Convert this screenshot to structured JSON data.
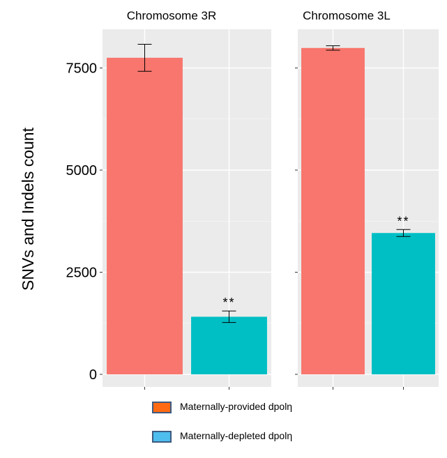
{
  "chart_data": {
    "type": "bar",
    "ylabel": "SNVs and Indels count",
    "ylim": [
      0,
      8400
    ],
    "yticks": [
      0,
      2500,
      5000,
      7500
    ],
    "grid": true,
    "legend_position": "bottom",
    "series": [
      {
        "name": "Maternally-provided dpolη",
        "color": "#F8766D"
      },
      {
        "name": "Maternally-depleted dpolη",
        "color": "#00BFC4"
      }
    ],
    "panels": [
      {
        "title": "Chromosome 3R",
        "categories": [
          "Maternally-provided dpolη",
          "Maternally-depleted dpolη"
        ],
        "values": [
          7750,
          1410
        ],
        "errors": [
          330,
          140
        ],
        "annotations": [
          "",
          "**"
        ]
      },
      {
        "title": "Chromosome 3L",
        "categories": [
          "Maternally-provided dpolη",
          "Maternally-depleted dpolη"
        ],
        "values": [
          7990,
          3460
        ],
        "errors": [
          55,
          85
        ],
        "annotations": [
          "",
          "**"
        ]
      }
    ]
  },
  "legend": {
    "items": [
      {
        "label": "Maternally-provided dpolη",
        "color": "#FF6A13"
      },
      {
        "label": "Maternally-depleted dpolη",
        "color": "#4DBEEE"
      }
    ]
  }
}
